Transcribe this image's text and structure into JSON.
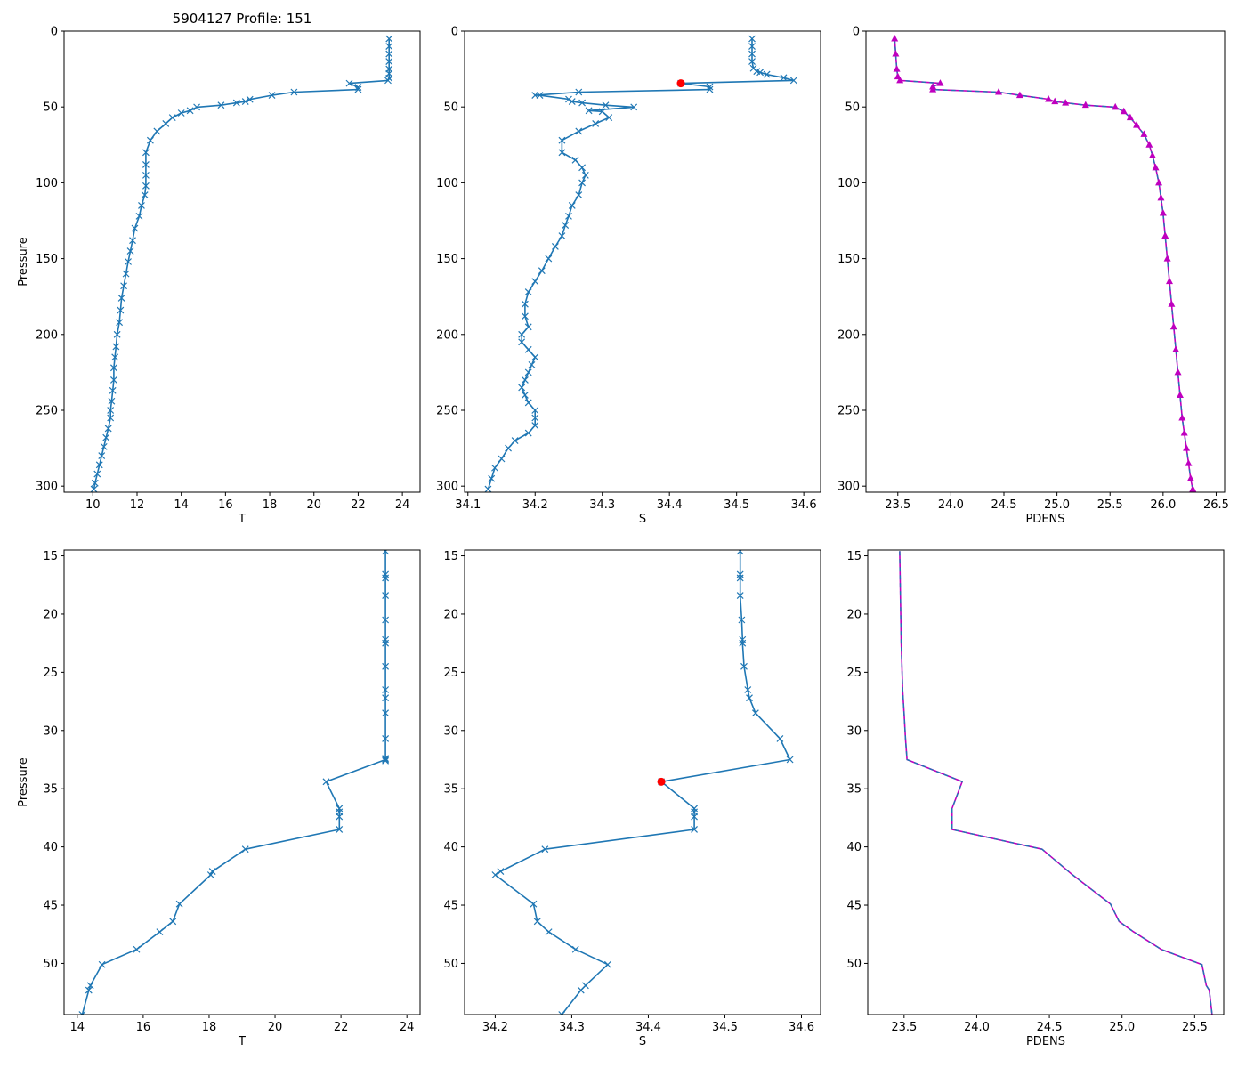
{
  "figure_title": "5904127 Profile: 151",
  "colors": {
    "line": "#1f77b4",
    "density": "#bf00bf",
    "density_dashed_overlay": "#1f77b4",
    "highlight": "#ff0000",
    "axes": "#000000"
  },
  "chart_data": [
    {
      "id": "t-full",
      "type": "line",
      "xlabel": "T",
      "ylabel": "Pressure",
      "title": "5904127 Profile: 151",
      "xlim": [
        8.7,
        24.8
      ],
      "ylim": [
        304,
        0
      ],
      "xticks": [
        10,
        12,
        14,
        16,
        18,
        20,
        22,
        24
      ],
      "yticks": [
        0,
        50,
        100,
        150,
        200,
        250,
        300
      ],
      "xtick_labels": [
        "10",
        "12",
        "14",
        "16",
        "18",
        "20",
        "22",
        "24"
      ],
      "ytick_labels": [
        "0",
        "50",
        "100",
        "150",
        "200",
        "250",
        "300"
      ],
      "marker": "x",
      "series": [
        {
          "name": "T",
          "x": [
            23.4,
            23.4,
            23.4,
            23.4,
            23.4,
            23.4,
            23.4,
            23.35,
            21.6,
            22.0,
            22.0,
            19.1,
            18.1,
            17.1,
            16.9,
            16.5,
            15.8,
            14.7,
            14.4,
            14.0,
            13.6,
            13.3,
            12.9,
            12.6,
            12.4,
            12.4,
            12.4,
            12.4,
            12.35,
            12.2,
            12.1,
            11.9,
            11.8,
            11.7,
            11.6,
            11.5,
            11.4,
            11.3,
            11.25,
            11.2,
            11.1,
            11.05,
            11.0,
            10.95,
            10.95,
            10.9,
            10.85,
            10.8,
            10.8,
            10.7,
            10.6,
            10.5,
            10.4,
            10.3,
            10.2,
            10.1,
            10.05
          ],
          "y": [
            5,
            10,
            15,
            20,
            25,
            28,
            31,
            32.5,
            34.4,
            37,
            38.5,
            40.2,
            42.3,
            45,
            46.4,
            47.3,
            48.8,
            50.1,
            52.4,
            54,
            57,
            61,
            66,
            72,
            80,
            88,
            95,
            102,
            108,
            115,
            122,
            130,
            138,
            145,
            152,
            160,
            168,
            176,
            184,
            192,
            200,
            208,
            215,
            222,
            230,
            237,
            244,
            250,
            255,
            262,
            268,
            274,
            280,
            286,
            292,
            298,
            302
          ]
        }
      ]
    },
    {
      "id": "s-full",
      "type": "line",
      "xlabel": "S",
      "ylabel": "",
      "xlim": [
        34.095,
        34.625
      ],
      "ylim": [
        304,
        0
      ],
      "xticks": [
        34.1,
        34.2,
        34.3,
        34.4,
        34.5,
        34.6
      ],
      "yticks": [
        0,
        50,
        100,
        150,
        200,
        250,
        300
      ],
      "xtick_labels": [
        "34.1",
        "34.2",
        "34.3",
        "34.4",
        "34.5",
        "34.6"
      ],
      "ytick_labels": [
        "0",
        "50",
        "100",
        "150",
        "200",
        "250",
        "300"
      ],
      "marker": "x",
      "highlight_point": {
        "x": 34.417,
        "y": 34.4
      },
      "series": [
        {
          "name": "S",
          "x": [
            34.523,
            34.523,
            34.523,
            34.523,
            34.525,
            34.53,
            34.535,
            34.545,
            34.57,
            34.585,
            34.417,
            34.46,
            34.46,
            34.265,
            34.2,
            34.207,
            34.25,
            34.255,
            34.27,
            34.305,
            34.347,
            34.28,
            34.3,
            34.31,
            34.29,
            34.265,
            34.24,
            34.24,
            34.26,
            34.27,
            34.275,
            34.27,
            34.265,
            34.255,
            34.25,
            34.245,
            34.24,
            34.23,
            34.22,
            34.21,
            34.2,
            34.19,
            34.185,
            34.185,
            34.19,
            34.18,
            34.18,
            34.19,
            34.2,
            34.195,
            34.19,
            34.185,
            34.18,
            34.185,
            34.19,
            34.2,
            34.2,
            34.2,
            34.19,
            34.17,
            34.16,
            34.15,
            34.14,
            34.135,
            34.13
          ],
          "y": [
            5,
            10,
            15,
            20,
            24.5,
            26.5,
            27.2,
            28.5,
            30.7,
            32.5,
            34.4,
            36.7,
            38.5,
            40.2,
            42.3,
            42.3,
            44.9,
            46.4,
            47.3,
            48.8,
            50.1,
            52.4,
            53,
            57,
            61,
            66,
            72,
            80,
            85,
            90,
            95,
            100,
            108,
            115,
            122,
            128,
            135,
            142,
            150,
            158,
            165,
            172,
            180,
            188,
            195,
            200,
            205,
            210,
            215,
            220,
            225,
            230,
            235,
            240,
            245,
            250,
            255,
            260,
            265,
            270,
            275,
            282,
            288,
            295,
            302
          ]
        }
      ]
    },
    {
      "id": "pdens-full",
      "type": "line",
      "xlabel": "PDENS",
      "ylabel": "",
      "xlim": [
        23.2,
        26.58
      ],
      "ylim": [
        304,
        0
      ],
      "xticks": [
        23.5,
        24.0,
        24.5,
        25.0,
        25.5,
        26.0,
        26.5
      ],
      "yticks": [
        0,
        50,
        100,
        150,
        200,
        250,
        300
      ],
      "xtick_labels": [
        "23.5",
        "24.0",
        "24.5",
        "25.0",
        "25.5",
        "26.0",
        "26.5"
      ],
      "ytick_labels": [
        "0",
        "50",
        "100",
        "150",
        "200",
        "250",
        "300"
      ],
      "marker": "triangle",
      "series": [
        {
          "name": "PDENS",
          "x": [
            23.47,
            23.48,
            23.49,
            23.5,
            23.52,
            23.9,
            23.83,
            23.83,
            24.45,
            24.65,
            24.92,
            24.98,
            25.08,
            25.27,
            25.55,
            25.63,
            25.69,
            25.75,
            25.82,
            25.87,
            25.9,
            25.93,
            25.96,
            25.98,
            26.0,
            26.02,
            26.04,
            26.06,
            26.08,
            26.1,
            26.12,
            26.14,
            26.16,
            26.18,
            26.2,
            26.22,
            26.24,
            26.26,
            26.28
          ],
          "y": [
            5,
            15,
            25,
            30,
            32.5,
            34.4,
            36.7,
            38.5,
            40.2,
            42.3,
            44.9,
            46.4,
            47.3,
            48.8,
            50.1,
            53,
            57,
            62,
            68,
            75,
            82,
            90,
            100,
            110,
            120,
            135,
            150,
            165,
            180,
            195,
            210,
            225,
            240,
            255,
            265,
            275,
            285,
            295,
            302
          ]
        }
      ]
    },
    {
      "id": "t-zoom",
      "type": "line",
      "xlabel": "T",
      "ylabel": "Pressure",
      "xlim": [
        13.6,
        24.4
      ],
      "ylim": [
        54.4,
        14.5
      ],
      "xticks": [
        14,
        16,
        18,
        20,
        22,
        24
      ],
      "yticks": [
        15,
        20,
        25,
        30,
        35,
        40,
        45,
        50
      ],
      "xtick_labels": [
        "14",
        "16",
        "18",
        "20",
        "22",
        "24"
      ],
      "ytick_labels": [
        "15",
        "20",
        "25",
        "30",
        "35",
        "40",
        "45",
        "50"
      ],
      "marker": "x",
      "series": [
        {
          "name": "T",
          "x": [
            23.35,
            23.35,
            23.35,
            23.35,
            23.35,
            23.35,
            23.35,
            23.35,
            23.35,
            23.35,
            23.35,
            23.35,
            23.35,
            23.35,
            23.35,
            21.55,
            21.95,
            21.95,
            21.95,
            21.95,
            19.1,
            18.1,
            18.05,
            17.1,
            16.9,
            16.5,
            15.8,
            14.75,
            14.4,
            14.35,
            14.15
          ],
          "y": [
            14.6,
            16.6,
            16.9,
            18.4,
            20.5,
            22.2,
            22.5,
            24.5,
            26.5,
            27.2,
            28.5,
            30.7,
            32.4,
            32.6,
            32.5,
            34.4,
            36.7,
            37.0,
            37.4,
            38.5,
            40.2,
            42.1,
            42.4,
            44.9,
            46.4,
            47.3,
            48.8,
            50.1,
            51.9,
            52.3,
            54.4
          ]
        }
      ]
    },
    {
      "id": "s-zoom",
      "type": "line",
      "xlabel": "S",
      "ylabel": "",
      "xlim": [
        34.16,
        34.625
      ],
      "ylim": [
        54.4,
        14.5
      ],
      "xticks": [
        34.2,
        34.3,
        34.4,
        34.5,
        34.6
      ],
      "yticks": [
        15,
        20,
        25,
        30,
        35,
        40,
        45,
        50
      ],
      "xtick_labels": [
        "34.2",
        "34.3",
        "34.4",
        "34.5",
        "34.6"
      ],
      "ytick_labels": [
        "15",
        "20",
        "25",
        "30",
        "35",
        "40",
        "45",
        "50"
      ],
      "marker": "x",
      "highlight_point": {
        "x": 34.417,
        "y": 34.4
      },
      "series": [
        {
          "name": "S",
          "x": [
            34.52,
            34.52,
            34.52,
            34.52,
            34.522,
            34.523,
            34.523,
            34.525,
            34.53,
            34.532,
            34.54,
            34.572,
            34.585,
            34.417,
            34.46,
            34.46,
            34.46,
            34.46,
            34.265,
            34.207,
            34.2,
            34.25,
            34.255,
            34.27,
            34.305,
            34.347,
            34.318,
            34.312,
            34.287
          ],
          "y": [
            14.6,
            16.6,
            16.9,
            18.4,
            20.5,
            22.2,
            22.5,
            24.5,
            26.5,
            27.2,
            28.5,
            30.7,
            32.5,
            34.4,
            36.7,
            37.0,
            37.4,
            38.5,
            40.2,
            42.1,
            42.4,
            44.9,
            46.4,
            47.3,
            48.8,
            50.1,
            51.9,
            52.3,
            54.4
          ]
        }
      ]
    },
    {
      "id": "pdens-zoom",
      "type": "line",
      "xlabel": "PDENS",
      "ylabel": "",
      "xlim": [
        23.25,
        25.7
      ],
      "ylim": [
        54.4,
        14.5
      ],
      "xticks": [
        23.5,
        24.0,
        24.5,
        25.0,
        25.5
      ],
      "yticks": [
        15,
        20,
        25,
        30,
        35,
        40,
        45,
        50
      ],
      "xtick_labels": [
        "23.5",
        "24.0",
        "24.5",
        "25.0",
        "25.5"
      ],
      "ytick_labels": [
        "15",
        "20",
        "25",
        "30",
        "35",
        "40",
        "45",
        "50"
      ],
      "marker": "none",
      "series": [
        {
          "name": "PDENS",
          "x": [
            23.47,
            23.475,
            23.48,
            23.49,
            23.5,
            23.51,
            23.52,
            23.9,
            23.83,
            23.83,
            23.83,
            24.45,
            24.65,
            24.92,
            24.98,
            25.08,
            25.27,
            25.55,
            25.58,
            25.6,
            25.62
          ],
          "y": [
            14.6,
            18.4,
            22.5,
            26.5,
            28.5,
            30.7,
            32.5,
            34.4,
            36.7,
            37.4,
            38.5,
            40.2,
            42.3,
            44.9,
            46.4,
            47.3,
            48.8,
            50.1,
            51.9,
            52.3,
            54.4
          ]
        }
      ]
    }
  ]
}
